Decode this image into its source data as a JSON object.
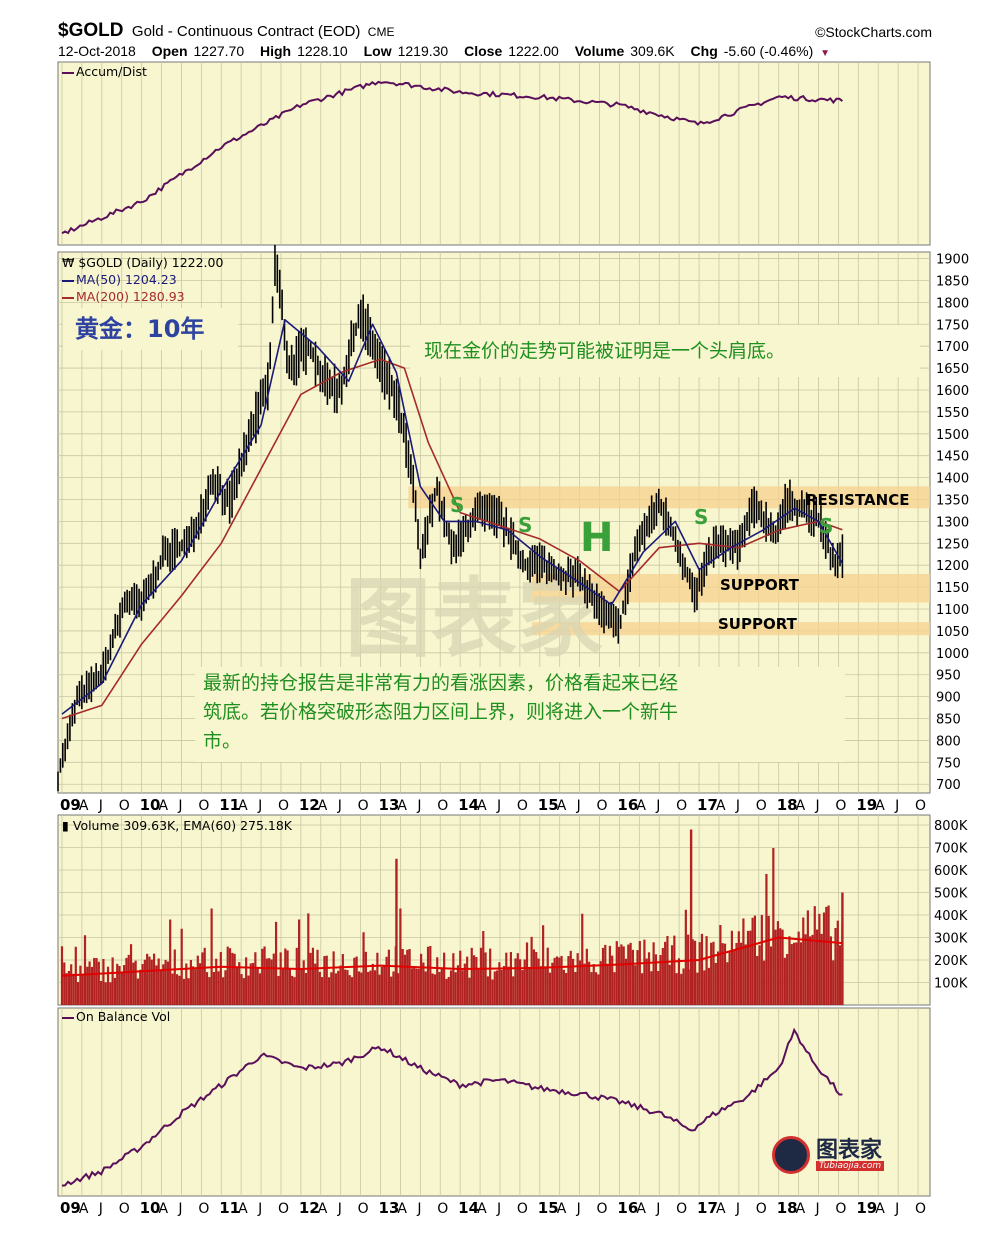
{
  "header": {
    "symbol": "$GOLD",
    "description": "Gold - Continuous Contract (EOD)",
    "exchange": "CME",
    "brand": "©StockCharts.com",
    "date": "12-Oct-2018",
    "open_label": "Open",
    "open": "1227.70",
    "high_label": "High",
    "high": "1228.10",
    "low_label": "Low",
    "low": "1219.30",
    "close_label": "Close",
    "close": "1222.00",
    "volume_label": "Volume",
    "volume": "309.6K",
    "chg_label": "Chg",
    "chg": "-5.60 (-0.46%)"
  },
  "panels": {
    "accum_label": "Accum/Dist",
    "price_label": "$GOLD (Daily) 1222.00",
    "ma50_label": "MA(50) 1204.23",
    "ma200_label": "MA(200) 1280.93",
    "volume_label": "Volume 309.63K, EMA(60) 275.18K",
    "obv_label": "On Balance Vol"
  },
  "annotations": {
    "title": "黄金：10年",
    "top_note": "现在金价的走势可能被证明是一个头肩底。",
    "bottom_note_line1": "最新的持仓报告是非常有力的看涨因素，价格看起来已经",
    "bottom_note_line2": "筑底。若价格突破形态阻力区间上界，则将进入一个新牛",
    "bottom_note_line3": "市。",
    "resistance": "RESISTANCE",
    "support_upper": "SUPPORT",
    "support_lower": "SUPPORT",
    "shoulder_labels": [
      "S",
      "S",
      "S",
      "S"
    ],
    "head_label": "H"
  },
  "watermark": "图表家",
  "logo_text": "图表家",
  "logo_sub": "Tubiaojia.com",
  "colors": {
    "panel_bg": "#f8f6cf",
    "grid": "#c9c7a2",
    "price_bar": "#000000",
    "ma50": "#1a1a7a",
    "ma200": "#a52a2a",
    "accum": "#5a0f5a",
    "volume_bar": "#b22222",
    "volume_ema": "#e00000",
    "zone": "#f5d08e",
    "annotation_green": "#1f8f1f",
    "title_blue": "#2e43a0"
  },
  "chart_data": [
    {
      "type": "line",
      "name": "Accum/Dist",
      "x": [
        "09",
        "10",
        "11",
        "12",
        "13",
        "14",
        "15",
        "16",
        "17",
        "18",
        "19"
      ],
      "series": [
        {
          "name": "Accum/Dist",
          "values": [
            0.02,
            0.22,
            0.56,
            0.82,
            0.97,
            0.9,
            0.87,
            0.82,
            0.7,
            0.87,
            0.84
          ]
        }
      ],
      "ylabel": "",
      "grid": true
    },
    {
      "type": "line",
      "title": "$GOLD (Daily) 1222.00",
      "x_ticks": [
        "09",
        "A",
        "J",
        "O",
        "10",
        "A",
        "J",
        "O",
        "11",
        "A",
        "J",
        "O",
        "12",
        "A",
        "J",
        "O",
        "13",
        "A",
        "J",
        "O",
        "14",
        "A",
        "J",
        "O",
        "15",
        "A",
        "J",
        "O",
        "16",
        "A",
        "J",
        "O",
        "17",
        "A",
        "J",
        "O",
        "18",
        "A",
        "J",
        "O",
        "19",
        "A",
        "J",
        "O"
      ],
      "y_ticks": [
        700,
        750,
        800,
        850,
        900,
        950,
        1000,
        1050,
        1100,
        1150,
        1200,
        1250,
        1300,
        1350,
        1400,
        1450,
        1500,
        1550,
        1600,
        1650,
        1700,
        1750,
        1800,
        1850,
        1900
      ],
      "ylim": [
        680,
        1915
      ],
      "series": [
        {
          "name": "$GOLD",
          "x": [
            2008.95,
            2009.2,
            2009.5,
            2009.8,
            2010.0,
            2010.3,
            2010.6,
            2010.9,
            2011.1,
            2011.4,
            2011.6,
            2011.68,
            2011.85,
            2012.1,
            2012.3,
            2012.5,
            2012.75,
            2012.95,
            2013.2,
            2013.4,
            2013.5,
            2013.7,
            2013.9,
            2014.2,
            2014.5,
            2014.8,
            2015.0,
            2015.2,
            2015.5,
            2015.85,
            2016.0,
            2016.2,
            2016.5,
            2016.7,
            2016.95,
            2017.2,
            2017.5,
            2017.7,
            2017.95,
            2018.1,
            2018.3,
            2018.5,
            2018.7,
            2018.8
          ],
          "values": [
            720,
            900,
            950,
            1120,
            1110,
            1230,
            1250,
            1400,
            1340,
            1520,
            1620,
            1900,
            1650,
            1700,
            1620,
            1600,
            1780,
            1680,
            1580,
            1400,
            1210,
            1380,
            1230,
            1320,
            1310,
            1200,
            1210,
            1180,
            1170,
            1080,
            1060,
            1240,
            1340,
            1260,
            1130,
            1250,
            1240,
            1340,
            1270,
            1345,
            1330,
            1300,
            1200,
            1222
          ]
        },
        {
          "name": "MA(50)",
          "x": [
            2009.0,
            2009.5,
            2010.0,
            2010.5,
            2011.0,
            2011.5,
            2011.8,
            2012.2,
            2012.6,
            2012.9,
            2013.2,
            2013.5,
            2013.8,
            2014.2,
            2014.6,
            2015.0,
            2015.5,
            2015.9,
            2016.3,
            2016.7,
            2017.0,
            2017.4,
            2017.8,
            2018.2,
            2018.5,
            2018.8
          ],
          "values": [
            860,
            930,
            1110,
            1210,
            1370,
            1520,
            1760,
            1700,
            1620,
            1750,
            1640,
            1380,
            1300,
            1300,
            1280,
            1220,
            1160,
            1110,
            1230,
            1300,
            1190,
            1240,
            1280,
            1330,
            1300,
            1204
          ]
        },
        {
          "name": "MA(200)",
          "x": [
            2009.0,
            2009.5,
            2010.0,
            2010.5,
            2011.0,
            2011.5,
            2012.0,
            2012.5,
            2013.0,
            2013.3,
            2013.6,
            2014.0,
            2014.5,
            2015.0,
            2015.5,
            2016.0,
            2016.5,
            2017.0,
            2017.5,
            2018.0,
            2018.5,
            2018.8
          ],
          "values": [
            850,
            880,
            1020,
            1130,
            1250,
            1420,
            1590,
            1640,
            1670,
            1650,
            1480,
            1320,
            1290,
            1260,
            1210,
            1140,
            1240,
            1250,
            1240,
            1280,
            1300,
            1281
          ]
        }
      ],
      "zones": [
        {
          "label": "RESISTANCE",
          "from": 1330,
          "to": 1380
        },
        {
          "label": "SUPPORT",
          "from": 1115,
          "to": 1180
        },
        {
          "label": "SUPPORT",
          "from": 1040,
          "to": 1070
        }
      ],
      "grid": true
    },
    {
      "type": "bar",
      "title": "Volume 309.63K, EMA(60) 275.18K",
      "y_ticks": [
        "100K",
        "200K",
        "300K",
        "400K",
        "500K",
        "600K",
        "700K",
        "800K"
      ],
      "ylim": [
        0,
        800000
      ],
      "series": [
        {
          "name": "EMA(60)",
          "x": [
            2009,
            2010,
            2011,
            2012,
            2013,
            2014,
            2015,
            2016,
            2017,
            2018,
            2018.8
          ],
          "values": [
            130000,
            150000,
            170000,
            160000,
            175000,
            160000,
            165000,
            180000,
            200000,
            300000,
            275180
          ]
        }
      ],
      "spikes": [
        {
          "x": 2013.2,
          "value": 650000
        },
        {
          "x": 2016.9,
          "value": 780000
        },
        {
          "x": 2018.8,
          "value": 500000
        }
      ],
      "grid": true
    },
    {
      "type": "line",
      "name": "On Balance Vol",
      "x": [
        2009.0,
        2009.5,
        2010.0,
        2010.5,
        2011.0,
        2011.5,
        2012.0,
        2012.5,
        2013.0,
        2013.5,
        2014.0,
        2014.5,
        2015.0,
        2015.5,
        2016.0,
        2016.5,
        2016.9,
        2017.2,
        2017.6,
        2018.0,
        2018.2,
        2018.4,
        2018.8
      ],
      "series": [
        {
          "name": "On Balance Vol",
          "values": [
            0.02,
            0.1,
            0.25,
            0.45,
            0.62,
            0.8,
            0.72,
            0.75,
            0.85,
            0.72,
            0.62,
            0.65,
            0.6,
            0.57,
            0.52,
            0.45,
            0.35,
            0.45,
            0.55,
            0.72,
            0.95,
            0.78,
            0.55
          ]
        }
      ],
      "grid": true
    }
  ]
}
